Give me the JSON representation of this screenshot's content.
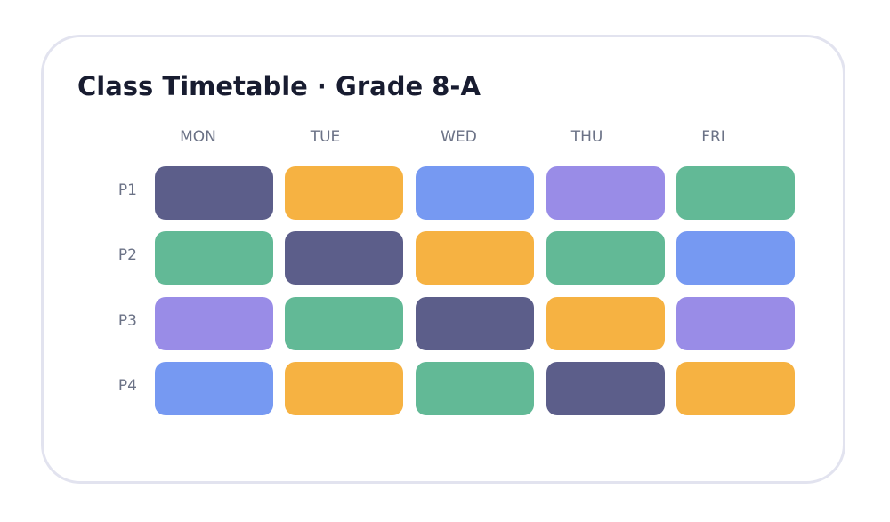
{
  "title": "Class Timetable · Grade 8-A",
  "days": [
    "MON",
    "TUE",
    "WED",
    "THU",
    "FRI"
  ],
  "periods": [
    "P1",
    "P2",
    "P3",
    "P4"
  ],
  "colors": {
    "navy": "#5c5e8a",
    "orange": "#f6b242",
    "blue": "#7699f2",
    "purple": "#998ce7",
    "green": "#62b996",
    "card_border": "#e2e3ef",
    "title_text": "#181c30",
    "label_text": "#6b7286"
  },
  "schedule": [
    [
      "navy",
      "orange",
      "blue",
      "purple",
      "green"
    ],
    [
      "green",
      "navy",
      "orange",
      "green",
      "blue"
    ],
    [
      "purple",
      "green",
      "navy",
      "orange",
      "purple"
    ],
    [
      "blue",
      "orange",
      "green",
      "navy",
      "orange"
    ]
  ]
}
